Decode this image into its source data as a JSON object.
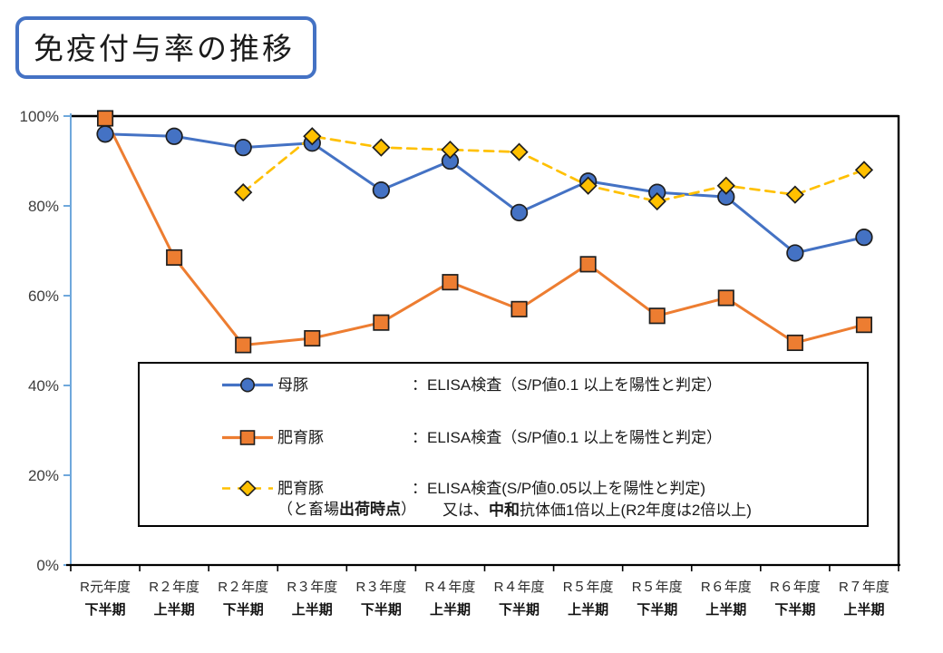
{
  "title": "免疫付与率の推移",
  "colors": {
    "title_border": "#4472C4",
    "y_axis": "#6FA8DC",
    "x_axis": "#000000",
    "plot_border": "#000000",
    "marker_outline": "#1f1f1f"
  },
  "chart_data": {
    "type": "line",
    "title": "免疫付与率の推移",
    "xlabel": "",
    "ylabel": "",
    "ylim": [
      0,
      100
    ],
    "grid": false,
    "legend_position": "inside-bottom",
    "y_ticks": [
      {
        "value": 100,
        "label": "100%"
      },
      {
        "value": 80,
        "label": "80%"
      },
      {
        "value": 60,
        "label": "60%"
      },
      {
        "value": 40,
        "label": "40%"
      },
      {
        "value": 20,
        "label": "20%"
      },
      {
        "value": 0,
        "label": "0%"
      }
    ],
    "categories": [
      [
        "R元年度",
        "下半期"
      ],
      [
        "R２年度",
        "上半期"
      ],
      [
        "R２年度",
        "下半期"
      ],
      [
        "R３年度",
        "上半期"
      ],
      [
        "R３年度",
        "下半期"
      ],
      [
        "R４年度",
        "上半期"
      ],
      [
        "R４年度",
        "下半期"
      ],
      [
        "R５年度",
        "上半期"
      ],
      [
        "R５年度",
        "下半期"
      ],
      [
        "R６年度",
        "上半期"
      ],
      [
        "R６年度",
        "下半期"
      ],
      [
        "R７年度",
        "上半期"
      ]
    ],
    "series": [
      {
        "key": "sows",
        "name": "母豚",
        "color": "#4472C4",
        "line": "solid",
        "marker": "circle",
        "values": [
          96,
          95.5,
          93,
          94,
          83.5,
          90,
          78.5,
          85.5,
          83,
          82,
          69.5,
          73
        ]
      },
      {
        "key": "fattening-pigs",
        "name": "肥育豚",
        "color": "#ED7D31",
        "line": "solid",
        "marker": "square",
        "values": [
          99.5,
          68.5,
          49,
          50.5,
          54,
          63,
          57,
          67,
          55.5,
          59.5,
          49.5,
          53.5
        ]
      },
      {
        "key": "fattening-pigs-at-slaughter",
        "name": "肥育豚（と畜場出荷時点）",
        "color": "#FFC000",
        "line": "dashed",
        "marker": "diamond",
        "values": [
          null,
          null,
          83,
          95.5,
          93,
          92.5,
          92,
          84.5,
          81,
          84.5,
          82.5,
          88
        ]
      }
    ]
  },
  "legend": {
    "rows": [
      {
        "marker": "circle-on-solid-line",
        "label": "母豚",
        "desc": "：ELISA検査（S/P値0.1 以上を陽性と判定）"
      },
      {
        "marker": "square-on-solid-line",
        "label": "肥育豚",
        "desc": "：ELISA検査（S/P値0.1 以上を陽性と判定）"
      },
      {
        "marker": "diamond-on-dashed-line",
        "label": "肥育豚",
        "label2_pre": "（と畜場",
        "label2_bold": "出荷時点",
        "label2_post": "）",
        "desc": "：ELISA検査(S/P値0.05以上を陽性と判定)",
        "desc2_pre": "又は、",
        "desc2_bold": "中和",
        "desc2_post": "抗体価1倍以上(R2年度は2倍以上)"
      }
    ]
  }
}
